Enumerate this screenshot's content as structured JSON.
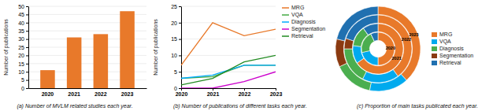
{
  "chart_data": [
    {
      "type": "bar",
      "title": "(a) Number of MVLM related studies each year.",
      "ylabel": "Number of publications",
      "categories": [
        "2020",
        "2021",
        "2022",
        "2023"
      ],
      "values": [
        11,
        31,
        33,
        47
      ],
      "color": "#E8792A",
      "ylim": [
        0,
        50
      ],
      "yticks": [
        0,
        5,
        10,
        15,
        20,
        25,
        30,
        35,
        40,
        45,
        50
      ],
      "grid": true
    },
    {
      "type": "line",
      "title": "(b) Number of publications of different tasks each year.",
      "ylabel": "Number of publications",
      "x": [
        2020,
        2021,
        2022,
        2023
      ],
      "xlim": [
        2020,
        2023
      ],
      "xticks": [
        2020,
        2021,
        2022,
        2023
      ],
      "ylim": [
        0,
        25
      ],
      "yticks": [
        0,
        5,
        10,
        15,
        20,
        25
      ],
      "grid": true,
      "legend": "right",
      "series": [
        {
          "name": "MRG",
          "color": "#E8792A",
          "values": [
            7,
            20,
            16,
            18
          ]
        },
        {
          "name": "VQA",
          "color": "#44AA44",
          "values": [
            3,
            3.5,
            7,
            7
          ]
        },
        {
          "name": "Diagnosis",
          "color": "#00AAFF",
          "values": [
            3,
            4,
            7,
            7
          ]
        },
        {
          "name": "Segmentation",
          "color": "#CC00CC",
          "values": [
            0,
            0,
            2,
            5
          ]
        },
        {
          "name": "Retrieval",
          "color": "#228B22",
          "values": [
            1,
            3,
            8,
            10
          ]
        }
      ]
    },
    {
      "type": "donut",
      "title": "(c) Proportion of main tasks publicated each year.",
      "categories": [
        "MRG",
        "VQA",
        "Diagnosis",
        "Segmentation",
        "Retrieval"
      ],
      "colors": [
        "#E8792A",
        "#00AAEE",
        "#4BAE4F",
        "#8B3A10",
        "#2070B0"
      ],
      "legend": "right",
      "series": [
        {
          "name": "2020",
          "values": [
            7,
            3,
            3,
            0,
            1
          ]
        },
        {
          "name": "2021",
          "values": [
            20,
            3.5,
            4,
            0,
            3
          ]
        },
        {
          "name": "2022",
          "values": [
            16,
            7,
            7,
            2,
            8
          ]
        },
        {
          "name": "2023",
          "values": [
            18,
            7,
            7,
            5,
            10
          ]
        }
      ]
    }
  ]
}
